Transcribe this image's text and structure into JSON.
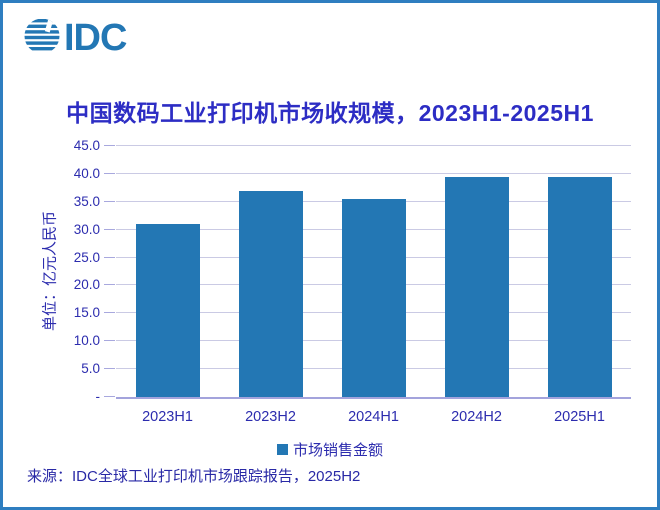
{
  "logo": {
    "text": "IDC",
    "color": "#2377b4"
  },
  "chart_data": {
    "type": "bar",
    "title": "中国数码工业打印机市场收规模，2023H1-2025H1",
    "categories": [
      "2023H1",
      "2023H2",
      "2024H1",
      "2024H2",
      "2025H1"
    ],
    "values": [
      31.0,
      37.0,
      35.5,
      39.5,
      39.4
    ],
    "series_name": "市场销售金额",
    "ylabel": "单位：亿元人民币",
    "ylim": [
      0,
      45
    ],
    "ytick_step": 5,
    "ytick_labels": [
      "-",
      "5.0",
      "10.0",
      "15.0",
      "20.0",
      "25.0",
      "30.0",
      "35.0",
      "40.0",
      "45.0"
    ],
    "bar_color": "#2377b4",
    "grid": true,
    "legend_position": "bottom"
  },
  "legend": {
    "label": "市场销售金额",
    "marker_color": "#2377b4"
  },
  "source_note": "来源：IDC全球工业打印机市场跟踪报告，2025H2",
  "colors": {
    "accent_blue": "#2377b4",
    "frame_border": "#2e7ec0",
    "title_ink": "#2d2dc4",
    "label_ink": "#2c2cae",
    "gridline": "#cacae4",
    "baseline": "#a3a3dc"
  }
}
